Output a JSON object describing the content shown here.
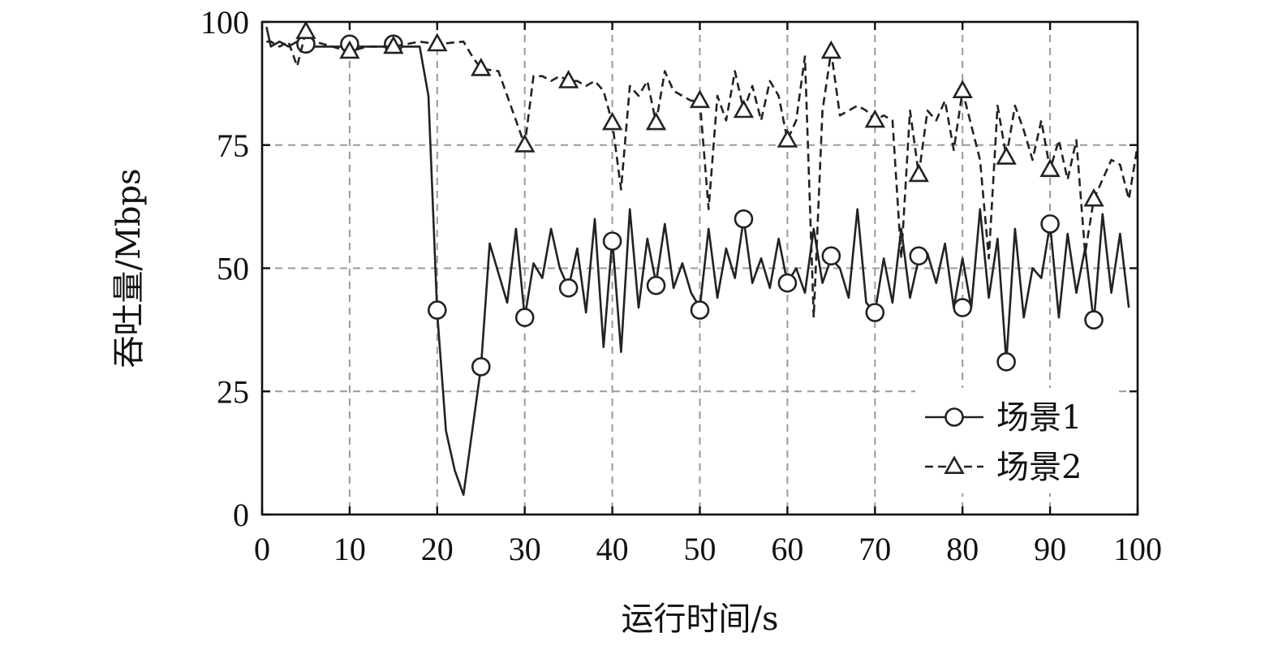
{
  "chart_data": {
    "type": "line",
    "xlabel": "运行时间/s",
    "ylabel": "吞吐量/Mbps",
    "xlim": [
      0,
      100
    ],
    "ylim": [
      0,
      100
    ],
    "xticks": [
      0,
      10,
      20,
      30,
      40,
      50,
      60,
      70,
      80,
      90,
      100
    ],
    "yticks": [
      0,
      25,
      50,
      75,
      100
    ],
    "xtick_labels": [
      "0",
      "10",
      "20",
      "30",
      "40",
      "50",
      "60",
      "70",
      "80",
      "90",
      "100"
    ],
    "ytick_labels": [
      "0",
      "25",
      "50",
      "75",
      "100"
    ],
    "grid": true,
    "legend_position": "bottom-right",
    "series": [
      {
        "name": "场景1",
        "marker": "circle",
        "line_style": "solid",
        "x": [
          0.5,
          1,
          2,
          3,
          4,
          5,
          6,
          8,
          10,
          12,
          15,
          17,
          18,
          19,
          20,
          21,
          22,
          23,
          24,
          25,
          26,
          27,
          28,
          29,
          30,
          31,
          32,
          33,
          34,
          35,
          36,
          37,
          38,
          39,
          40,
          41,
          42,
          43,
          44,
          45,
          46,
          47,
          48,
          49,
          50,
          51,
          52,
          53,
          54,
          55,
          56,
          57,
          58,
          59,
          60,
          61,
          62,
          63,
          64,
          65,
          66,
          67,
          68,
          69,
          70,
          71,
          72,
          73,
          74,
          75,
          76,
          77,
          78,
          79,
          80,
          81,
          82,
          83,
          84,
          85,
          86,
          87,
          88,
          89,
          90,
          91,
          92,
          93,
          94,
          95,
          96,
          97,
          98,
          99
        ],
        "y": [
          99,
          95,
          96,
          95,
          96,
          95,
          95,
          95,
          95,
          95,
          95,
          95,
          95,
          85,
          41,
          17,
          9,
          4,
          17,
          30,
          55,
          49,
          43,
          58,
          40,
          51,
          48,
          58,
          50,
          46,
          54,
          41,
          60,
          34,
          56,
          33,
          62,
          42,
          56,
          47,
          59,
          46,
          51,
          45,
          42,
          58,
          44,
          54,
          48,
          60,
          47,
          52,
          46,
          56,
          47,
          50,
          45,
          58,
          47,
          52,
          50,
          44,
          62,
          43,
          41,
          52,
          43,
          58,
          44,
          52,
          53,
          47,
          55,
          42,
          52,
          42,
          62,
          44,
          56,
          31,
          58,
          40,
          50,
          48,
          59,
          40,
          57,
          45,
          54,
          39,
          61,
          45,
          57,
          42
        ],
        "marker_x": [
          5,
          10,
          15,
          20,
          25,
          30,
          35,
          40,
          45,
          50,
          55,
          60,
          65,
          70,
          75,
          80,
          85,
          90,
          95
        ],
        "marker_y": [
          95.5,
          95.5,
          95.5,
          41.5,
          30,
          40,
          46,
          55.5,
          46.5,
          41.5,
          60,
          47,
          52.5,
          41,
          52.5,
          42,
          31,
          59,
          39.5
        ]
      },
      {
        "name": "场景2",
        "marker": "triangle",
        "line_style": "dashed",
        "x": [
          0.5,
          1,
          2,
          3,
          4,
          5,
          6,
          8,
          10,
          12,
          15,
          18,
          20,
          23,
          24,
          25,
          27,
          28,
          29,
          30,
          31,
          32,
          33,
          34,
          35,
          36,
          37,
          38,
          39,
          40,
          41,
          42,
          43,
          44,
          45,
          46,
          47,
          48,
          49,
          50,
          51,
          52,
          53,
          54,
          55,
          56,
          57,
          58,
          59,
          60,
          61,
          62,
          63,
          64,
          65,
          66,
          67,
          68,
          69,
          70,
          71,
          72,
          73,
          74,
          75,
          76,
          77,
          78,
          79,
          80,
          81,
          82,
          83,
          84,
          85,
          86,
          87,
          88,
          89,
          90,
          91,
          92,
          93,
          94,
          95,
          96,
          97,
          98,
          99,
          100
        ],
        "y": [
          96,
          96,
          95,
          96,
          91,
          98,
          96,
          95,
          94,
          95,
          95,
          96,
          95.5,
          96,
          93,
          90.5,
          90,
          85,
          80,
          75,
          89,
          89,
          88,
          89,
          88,
          88,
          87,
          88,
          86,
          79.5,
          66,
          87,
          85,
          88,
          79.5,
          90,
          86,
          85,
          84,
          84,
          62,
          85,
          80,
          90,
          82,
          87,
          80,
          88,
          85,
          76,
          80,
          93,
          40,
          82,
          94,
          81,
          82,
          83,
          82,
          80,
          81,
          80,
          52,
          82,
          69,
          82,
          80,
          84,
          74,
          86,
          79,
          72,
          52,
          83,
          72.5,
          83,
          78,
          72,
          80,
          70,
          76,
          68,
          76,
          53,
          64,
          68,
          72,
          71,
          64,
          75
        ]
      }
    ]
  }
}
